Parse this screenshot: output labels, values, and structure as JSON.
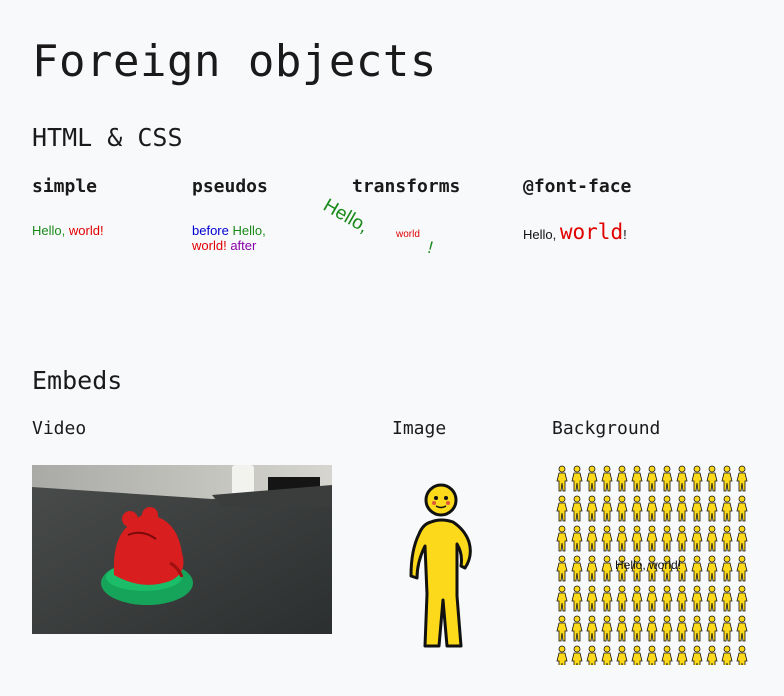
{
  "title": "Foreign objects",
  "sections": {
    "html_css": "HTML & CSS",
    "embeds": "Embeds"
  },
  "html_css": {
    "simple": {
      "heading": "simple",
      "hello": "Hello,",
      "world": "world",
      "bang": "!"
    },
    "pseudos": {
      "heading": "pseudos",
      "before": "before",
      "hello": "Hello,",
      "world": "world",
      "bang": "!",
      "after": "after"
    },
    "transforms": {
      "heading": "transforms",
      "hello": "Hello,",
      "world": "world",
      "bang": "!"
    },
    "font_face": {
      "heading": "@font-face",
      "hello": "Hello,",
      "world": "world",
      "bang": "!"
    }
  },
  "embeds": {
    "video": {
      "heading": "Video"
    },
    "image": {
      "heading": "Image"
    },
    "background": {
      "heading": "Background",
      "label": "Hello, world!"
    }
  },
  "colors": {
    "page_bg": "#f8f9fb",
    "green": "#1a8a1a",
    "red": "#e00000",
    "blue": "#0000d0",
    "purple": "#8800aa",
    "figure_yellow": "#fcd91a"
  }
}
